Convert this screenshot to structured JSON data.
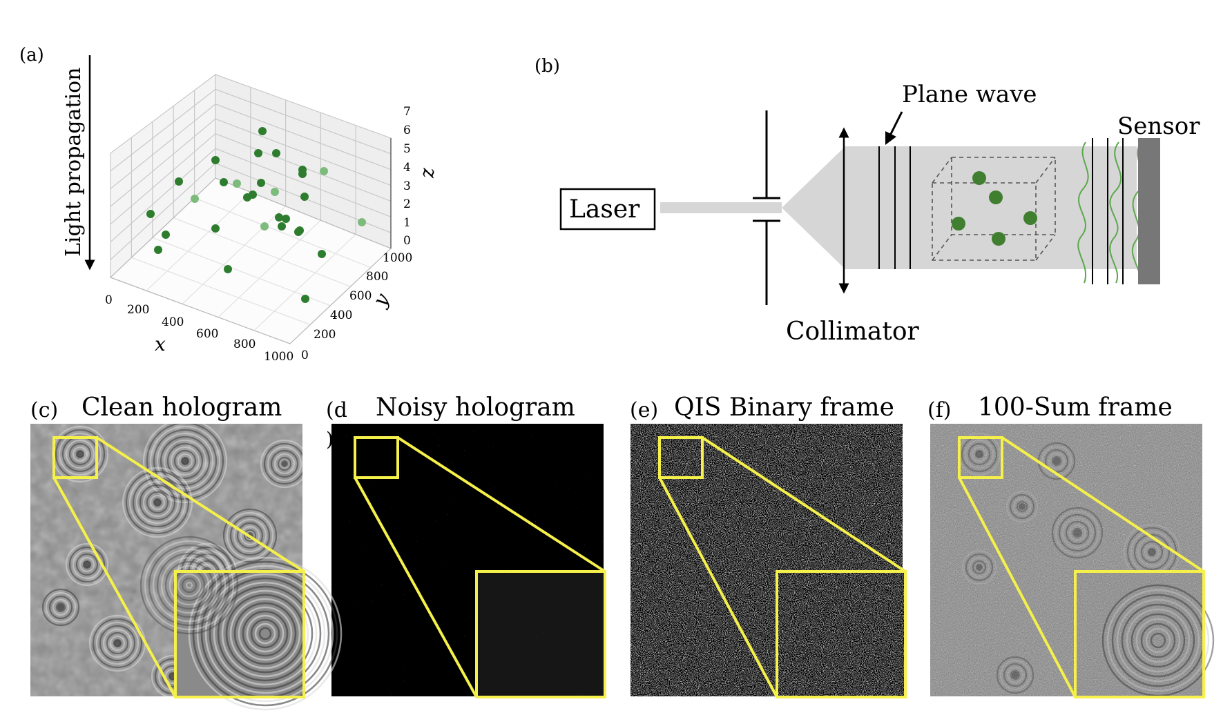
{
  "panel_a": {
    "label": "(a)",
    "arrow_label": "Light propagation",
    "x_axis": {
      "label": "x",
      "ticks": [
        "0",
        "200",
        "400",
        "600",
        "800",
        "1000"
      ]
    },
    "y_axis": {
      "label": "y",
      "ticks": [
        "0",
        "200",
        "400",
        "600",
        "800",
        "1000"
      ]
    },
    "z_axis": {
      "label": "z",
      "ticks": [
        "0",
        "1",
        "2",
        "3",
        "4",
        "5",
        "6",
        "7"
      ]
    },
    "colors": {
      "dark": "#2e7d2e",
      "light": "#7dbb7d"
    }
  },
  "panel_b": {
    "label": "(b)",
    "laser_label": "Laser",
    "collimator_label": "Collimator",
    "plane_wave_label": "Plane wave",
    "sensor_label": "Sensor",
    "colors": {
      "beam": "#d6d6d6",
      "sensor": "#777777",
      "particle": "#3f7f2f",
      "wave": "#5aa84a"
    }
  },
  "panel_c": {
    "label": "(c)",
    "title": "Clean hologram"
  },
  "panel_d": {
    "label": "(d",
    "title": "Noisy hologram",
    "stray": ")a"
  },
  "panel_e": {
    "label": "(e)",
    "title": "QIS Binary frame"
  },
  "panel_f": {
    "label": "(f)",
    "title": "100-Sum frame"
  },
  "highlight_color": "#f5f04a"
}
